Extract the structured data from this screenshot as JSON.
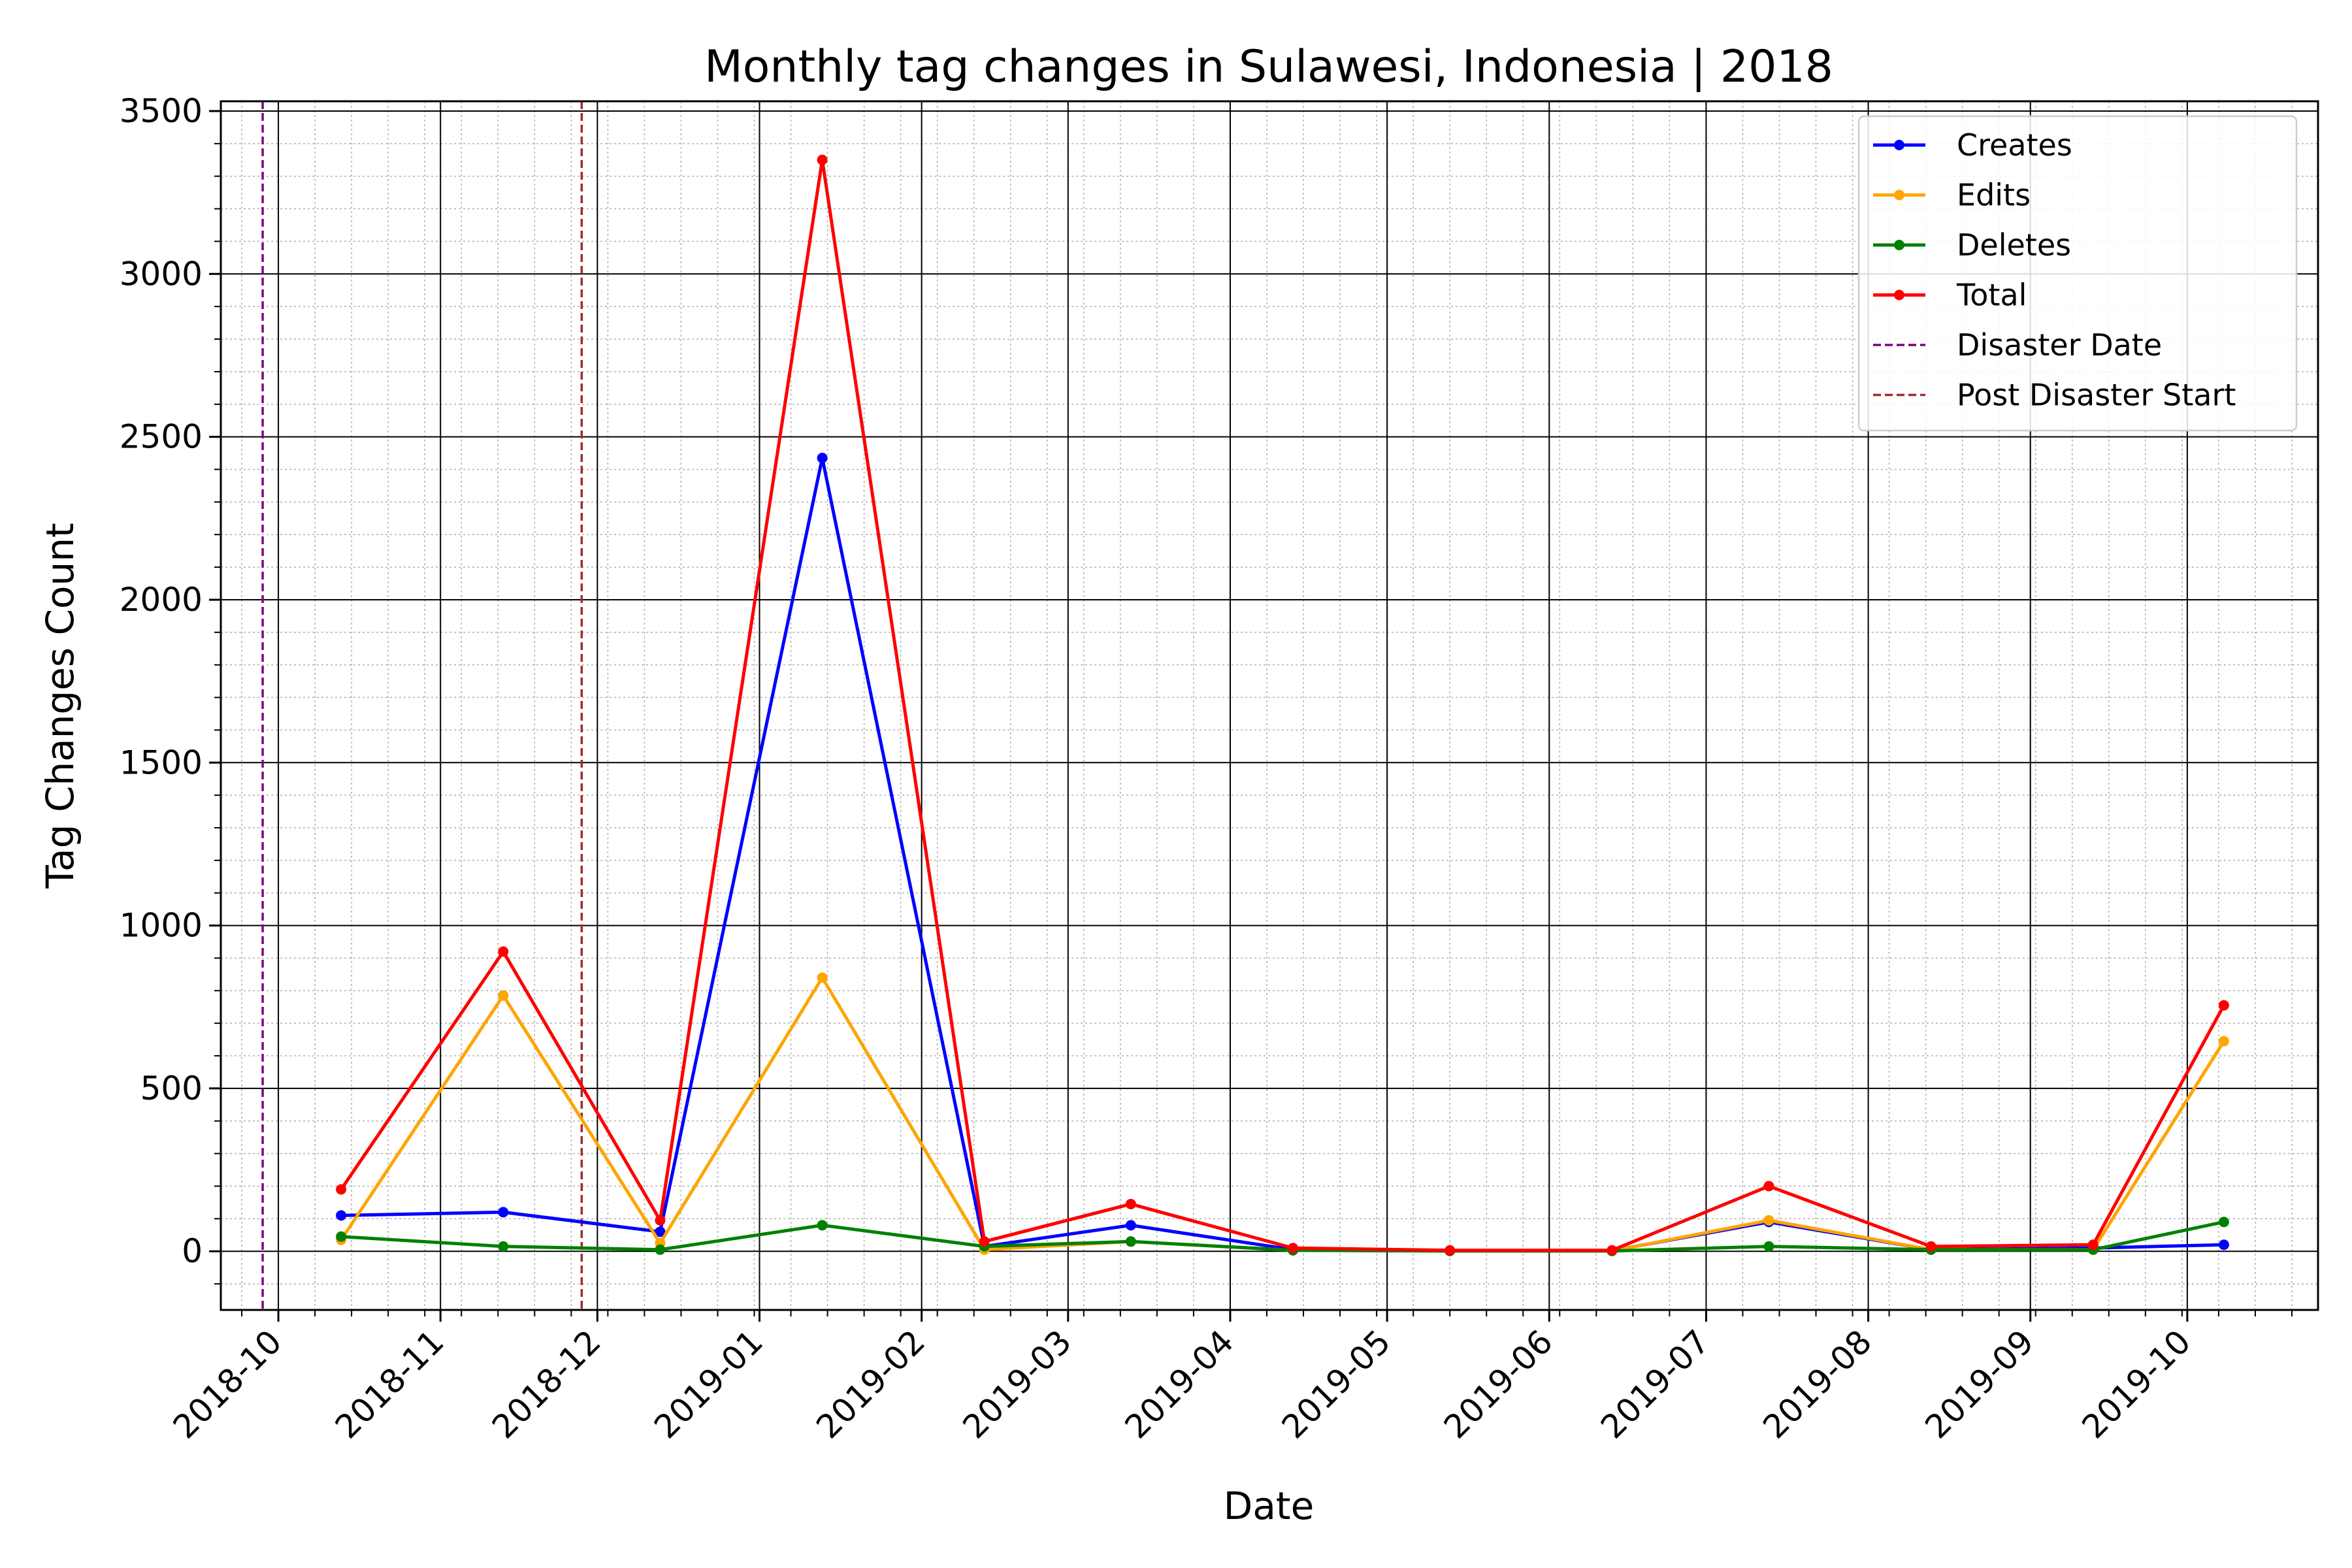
{
  "chart_data": {
    "type": "line",
    "title": "Monthly tag changes in Sulawesi, Indonesia | 2018",
    "xlabel": "Date",
    "ylabel": "Tag Changes Count",
    "x_range": [
      "2018-09-20",
      "2019-10-26"
    ],
    "ylim": [
      -180,
      3530
    ],
    "yticks": [
      0,
      500,
      1000,
      1500,
      2000,
      2500,
      3000,
      3500
    ],
    "xticks": [
      "2018-10",
      "2018-11",
      "2018-12",
      "2019-01",
      "2019-02",
      "2019-03",
      "2019-04",
      "2019-05",
      "2019-06",
      "2019-07",
      "2019-08",
      "2019-09",
      "2019-10"
    ],
    "xtick_dates": [
      "2018-10-01",
      "2018-11-01",
      "2018-12-01",
      "2019-01-01",
      "2019-02-01",
      "2019-03-01",
      "2019-04-01",
      "2019-05-01",
      "2019-06-01",
      "2019-07-01",
      "2019-08-01",
      "2019-09-01",
      "2019-10-01"
    ],
    "grid": true,
    "minor_grid": true,
    "legend_position": "top-right",
    "x": [
      "2018-10-13",
      "2018-11-13",
      "2018-12-13",
      "2019-01-13",
      "2019-02-13",
      "2019-03-13",
      "2019-04-13",
      "2019-05-13",
      "2019-06-13",
      "2019-07-13",
      "2019-08-13",
      "2019-09-13",
      "2019-10-08"
    ],
    "series": [
      {
        "name": "Creates",
        "color": "#0000ff",
        "values": [
          110,
          120,
          60,
          2435,
          15,
          80,
          5,
          2,
          2,
          90,
          5,
          10,
          20
        ]
      },
      {
        "name": "Edits",
        "color": "#ffa500",
        "values": [
          35,
          785,
          25,
          840,
          5,
          30,
          3,
          1,
          1,
          95,
          5,
          5,
          645
        ]
      },
      {
        "name": "Deletes",
        "color": "#008000",
        "values": [
          45,
          15,
          5,
          80,
          15,
          30,
          3,
          1,
          1,
          15,
          5,
          5,
          90
        ]
      },
      {
        "name": "Total",
        "color": "#ff0000",
        "values": [
          190,
          920,
          95,
          3350,
          30,
          145,
          10,
          3,
          3,
          200,
          15,
          20,
          755
        ]
      }
    ],
    "vlines": [
      {
        "name": "Disaster Date",
        "date": "2018-09-28",
        "color": "#800080"
      },
      {
        "name": "Post Disaster Start",
        "date": "2018-11-28",
        "color": "#a52a2a"
      }
    ]
  }
}
